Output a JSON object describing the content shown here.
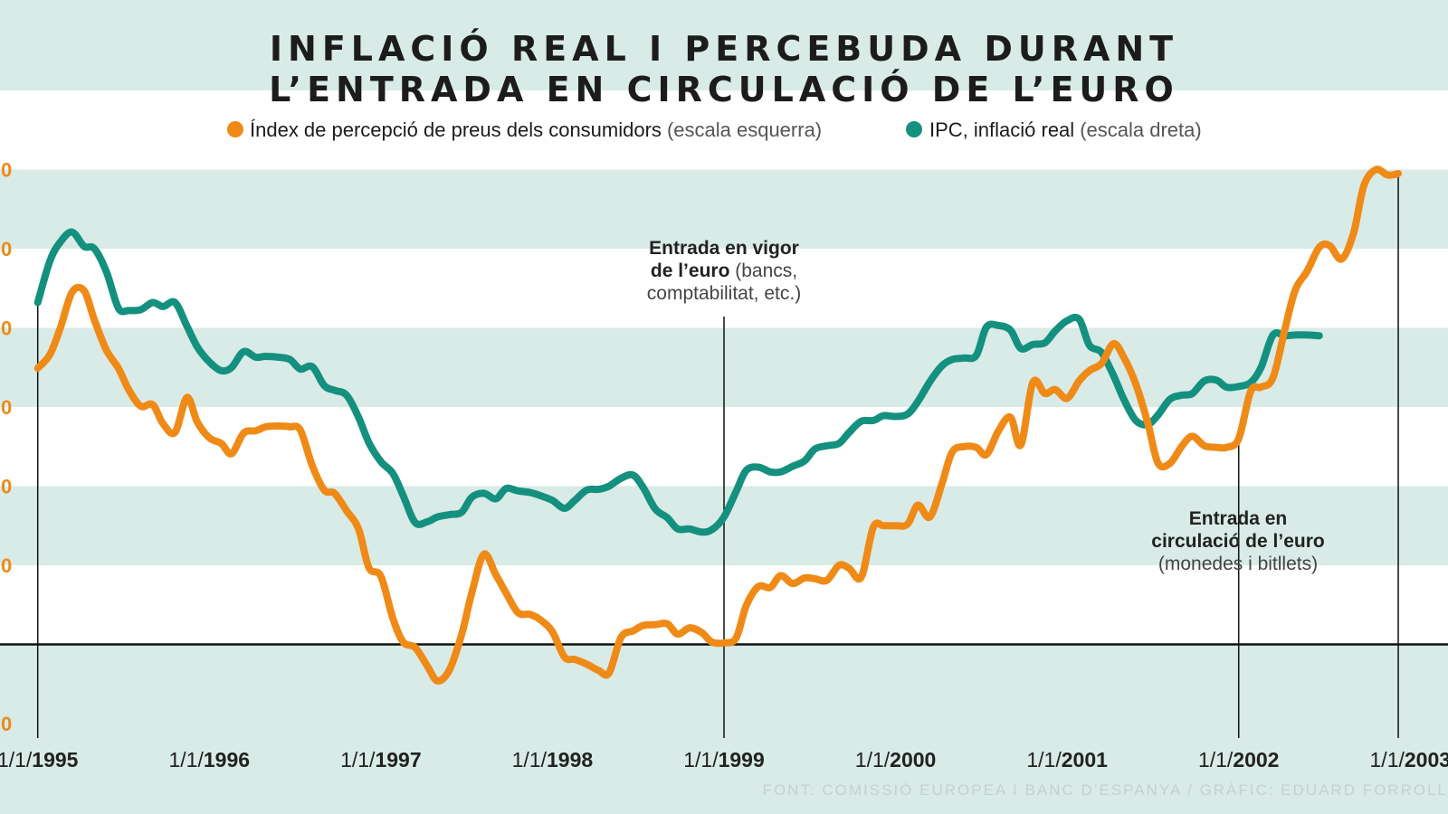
{
  "title_line1": "INFLACIÓ REAL I PERCEBUDA DURANT",
  "title_line2": "L’ENTRADA EN CIRCULACIÓ DE L’EURO",
  "legend": [
    {
      "label": "Índex de percepció de preus dels consumidors",
      "note": "(escala esquerra)",
      "color": "#ef8a17"
    },
    {
      "label": "IPC, inflació real",
      "note": "(escala dreta)",
      "color": "#14907e"
    }
  ],
  "annotations": {
    "euro_vigor": {
      "line1": "Entrada en vigor",
      "line2_bold": "de l’euro",
      "line2_rest": " (bancs,",
      "line3": "comptabilitat, etc.)"
    },
    "euro_circulacio": {
      "line1": "Entrada en",
      "line2": "circulació de l’euro",
      "line3": "(monedes i bitllets)"
    }
  },
  "source": "FONT: COMISSIÓ EUROPEA I BANC D’ESPANYA / GRÀFIC: EDUARD FORROLL",
  "colors": {
    "orange": "#ef8a17",
    "teal": "#14907e",
    "band_dark": "#d8ebe7",
    "band_light": "#ffffff"
  },
  "chart_data": {
    "type": "line",
    "x_ticks": [
      {
        "prefix": "1/1/",
        "year": "1995",
        "x": 1995
      },
      {
        "prefix": "1/1/",
        "year": "1996",
        "x": 1996
      },
      {
        "prefix": "1/1/",
        "year": "1997",
        "x": 1997
      },
      {
        "prefix": "1/1/",
        "year": "1998",
        "x": 1998
      },
      {
        "prefix": "1/1/",
        "year": "1999",
        "x": 1999
      },
      {
        "prefix": "1/1/",
        "year": "2000",
        "x": 2000
      },
      {
        "prefix": "1/1/",
        "year": "2001",
        "x": 2001
      },
      {
        "prefix": "1/1/",
        "year": "2002",
        "x": 2002
      },
      {
        "prefix": "1/1/",
        "year": "2003",
        "x": 2003
      }
    ],
    "y_left_ticks": [
      {
        "label": "0",
        "value": 60
      },
      {
        "label": "0",
        "value": 50
      },
      {
        "label": "0",
        "value": 40
      },
      {
        "label": "0",
        "value": 30
      },
      {
        "label": "0",
        "value": 20
      },
      {
        "label": "0",
        "value": 10
      },
      {
        "label": "0",
        "value": -10
      }
    ],
    "xlim": [
      1994.78,
      2003.22
    ],
    "ylim": [
      -10,
      70
    ],
    "zero_line": 0,
    "annotation_x": [
      1999,
      2002
    ],
    "series": [
      {
        "name": "Índex de percepció de preus dels consumidors",
        "color": "#ef8a17",
        "points": [
          [
            1995.0,
            34.9
          ],
          [
            1995.07,
            36.6
          ],
          [
            1995.13,
            39.9
          ],
          [
            1995.2,
            44.5
          ],
          [
            1995.27,
            44.7
          ],
          [
            1995.33,
            41.0
          ],
          [
            1995.4,
            37.2
          ],
          [
            1995.47,
            34.9
          ],
          [
            1995.53,
            32.2
          ],
          [
            1995.6,
            30.1
          ],
          [
            1995.67,
            30.3
          ],
          [
            1995.73,
            27.9
          ],
          [
            1995.8,
            26.8
          ],
          [
            1995.87,
            31.2
          ],
          [
            1995.93,
            28.1
          ],
          [
            1996.0,
            26.1
          ],
          [
            1996.07,
            25.4
          ],
          [
            1996.13,
            24.1
          ],
          [
            1996.2,
            26.7
          ],
          [
            1996.27,
            27.0
          ],
          [
            1996.33,
            27.5
          ],
          [
            1996.4,
            27.6
          ],
          [
            1996.47,
            27.5
          ],
          [
            1996.53,
            27.1
          ],
          [
            1996.6,
            22.6
          ],
          [
            1996.67,
            19.5
          ],
          [
            1996.73,
            19.1
          ],
          [
            1996.8,
            16.9
          ],
          [
            1996.87,
            14.6
          ],
          [
            1996.93,
            9.7
          ],
          [
            1997.0,
            8.6
          ],
          [
            1997.07,
            3.3
          ],
          [
            1997.13,
            0.3
          ],
          [
            1997.2,
            -0.4
          ],
          [
            1997.27,
            -2.7
          ],
          [
            1997.33,
            -4.6
          ],
          [
            1997.4,
            -3.2
          ],
          [
            1997.47,
            1.2
          ],
          [
            1997.53,
            6.5
          ],
          [
            1997.6,
            11.4
          ],
          [
            1997.67,
            8.8
          ],
          [
            1997.73,
            6.5
          ],
          [
            1997.8,
            4.0
          ],
          [
            1997.87,
            3.8
          ],
          [
            1997.93,
            3.1
          ],
          [
            1998.0,
            1.6
          ],
          [
            1998.07,
            -1.6
          ],
          [
            1998.13,
            -1.9
          ],
          [
            1998.2,
            -2.5
          ],
          [
            1998.27,
            -3.3
          ],
          [
            1998.33,
            -3.6
          ],
          [
            1998.4,
            0.9
          ],
          [
            1998.47,
            1.7
          ],
          [
            1998.53,
            2.4
          ],
          [
            1998.6,
            2.5
          ],
          [
            1998.67,
            2.6
          ],
          [
            1998.73,
            1.3
          ],
          [
            1998.8,
            2.1
          ],
          [
            1998.87,
            1.5
          ],
          [
            1998.93,
            0.3
          ],
          [
            1999.0,
            0.2
          ],
          [
            1999.07,
            0.8
          ],
          [
            1999.13,
            4.9
          ],
          [
            1999.2,
            7.3
          ],
          [
            1999.27,
            7.2
          ],
          [
            1999.33,
            8.7
          ],
          [
            1999.4,
            7.7
          ],
          [
            1999.47,
            8.4
          ],
          [
            1999.53,
            8.3
          ],
          [
            1999.6,
            8.1
          ],
          [
            1999.67,
            10.0
          ],
          [
            1999.73,
            9.6
          ],
          [
            1999.8,
            8.5
          ],
          [
            1999.87,
            14.8
          ],
          [
            1999.93,
            15.0
          ],
          [
            2000.0,
            15.0
          ],
          [
            2000.07,
            15.2
          ],
          [
            2000.13,
            17.6
          ],
          [
            2000.2,
            16.1
          ],
          [
            2000.27,
            20.3
          ],
          [
            2000.33,
            24.3
          ],
          [
            2000.4,
            25.0
          ],
          [
            2000.47,
            24.9
          ],
          [
            2000.53,
            24.0
          ],
          [
            2000.6,
            27.0
          ],
          [
            2000.67,
            28.7
          ],
          [
            2000.73,
            25.2
          ],
          [
            2000.8,
            33.1
          ],
          [
            2000.87,
            31.7
          ],
          [
            2000.93,
            32.2
          ],
          [
            2001.0,
            31.1
          ],
          [
            2001.07,
            33.3
          ],
          [
            2001.13,
            34.6
          ],
          [
            2001.2,
            35.5
          ],
          [
            2001.27,
            38.0
          ],
          [
            2001.33,
            36.3
          ],
          [
            2001.4,
            32.9
          ],
          [
            2001.47,
            28.0
          ],
          [
            2001.53,
            22.9
          ],
          [
            2001.6,
            22.9
          ],
          [
            2001.67,
            25.1
          ],
          [
            2001.73,
            26.3
          ],
          [
            2001.8,
            25.1
          ],
          [
            2001.87,
            24.9
          ],
          [
            2001.93,
            24.9
          ],
          [
            2002.0,
            26.0
          ],
          [
            2002.07,
            32.0
          ],
          [
            2002.13,
            32.5
          ],
          [
            2002.2,
            33.7
          ],
          [
            2002.27,
            39.9
          ],
          [
            2002.33,
            44.8
          ],
          [
            2002.4,
            47.2
          ],
          [
            2002.47,
            50.2
          ],
          [
            2002.53,
            50.4
          ],
          [
            2002.6,
            48.7
          ],
          [
            2002.67,
            52.0
          ],
          [
            2002.73,
            58.0
          ],
          [
            2002.8,
            60.0
          ],
          [
            2002.87,
            59.3
          ],
          [
            2002.93,
            59.5
          ]
        ]
      },
      {
        "name": "IPC, inflació real",
        "color": "#14907e",
        "points": [
          [
            1995.0,
            43.2
          ],
          [
            1995.07,
            48.4
          ],
          [
            1995.13,
            50.8
          ],
          [
            1995.2,
            52.1
          ],
          [
            1995.27,
            50.3
          ],
          [
            1995.33,
            50.0
          ],
          [
            1995.4,
            47.1
          ],
          [
            1995.47,
            42.5
          ],
          [
            1995.53,
            42.2
          ],
          [
            1995.6,
            42.3
          ],
          [
            1995.67,
            43.2
          ],
          [
            1995.73,
            42.7
          ],
          [
            1995.8,
            43.2
          ],
          [
            1995.87,
            40.2
          ],
          [
            1995.93,
            37.6
          ],
          [
            1996.0,
            35.7
          ],
          [
            1996.07,
            34.6
          ],
          [
            1996.13,
            35.0
          ],
          [
            1996.2,
            37.0
          ],
          [
            1996.27,
            36.3
          ],
          [
            1996.33,
            36.4
          ],
          [
            1996.4,
            36.3
          ],
          [
            1996.47,
            36.0
          ],
          [
            1996.53,
            34.8
          ],
          [
            1996.6,
            35.1
          ],
          [
            1996.67,
            32.7
          ],
          [
            1996.73,
            32.1
          ],
          [
            1996.8,
            31.5
          ],
          [
            1996.87,
            28.7
          ],
          [
            1996.93,
            25.5
          ],
          [
            1997.0,
            23.1
          ],
          [
            1997.07,
            21.6
          ],
          [
            1997.13,
            18.8
          ],
          [
            1997.2,
            15.4
          ],
          [
            1997.27,
            15.5
          ],
          [
            1997.33,
            16.1
          ],
          [
            1997.4,
            16.4
          ],
          [
            1997.47,
            16.7
          ],
          [
            1997.53,
            18.6
          ],
          [
            1997.6,
            19.1
          ],
          [
            1997.67,
            18.4
          ],
          [
            1997.73,
            19.7
          ],
          [
            1997.8,
            19.4
          ],
          [
            1997.87,
            19.2
          ],
          [
            1997.93,
            18.8
          ],
          [
            1998.0,
            18.2
          ],
          [
            1998.07,
            17.2
          ],
          [
            1998.13,
            18.2
          ],
          [
            1998.2,
            19.5
          ],
          [
            1998.27,
            19.6
          ],
          [
            1998.33,
            20.0
          ],
          [
            1998.4,
            21.0
          ],
          [
            1998.47,
            21.4
          ],
          [
            1998.53,
            19.8
          ],
          [
            1998.6,
            17.1
          ],
          [
            1998.67,
            16.0
          ],
          [
            1998.73,
            14.6
          ],
          [
            1998.8,
            14.6
          ],
          [
            1998.87,
            14.2
          ],
          [
            1998.93,
            14.5
          ],
          [
            1999.0,
            16.1
          ],
          [
            1999.07,
            19.3
          ],
          [
            1999.13,
            22.0
          ],
          [
            1999.2,
            22.4
          ],
          [
            1999.27,
            21.8
          ],
          [
            1999.33,
            21.8
          ],
          [
            1999.4,
            22.5
          ],
          [
            1999.47,
            23.2
          ],
          [
            1999.53,
            24.7
          ],
          [
            1999.6,
            25.1
          ],
          [
            1999.67,
            25.4
          ],
          [
            1999.73,
            26.8
          ],
          [
            1999.8,
            28.2
          ],
          [
            1999.87,
            28.3
          ],
          [
            1999.93,
            28.9
          ],
          [
            2000.0,
            28.8
          ],
          [
            2000.07,
            29.1
          ],
          [
            2000.13,
            30.7
          ],
          [
            2000.2,
            33.2
          ],
          [
            2000.27,
            35.2
          ],
          [
            2000.33,
            36.0
          ],
          [
            2000.4,
            36.2
          ],
          [
            2000.47,
            36.5
          ],
          [
            2000.53,
            40.1
          ],
          [
            2000.6,
            40.3
          ],
          [
            2000.67,
            39.7
          ],
          [
            2000.73,
            37.4
          ],
          [
            2000.8,
            37.9
          ],
          [
            2000.87,
            38.1
          ],
          [
            2000.93,
            39.6
          ],
          [
            2001.0,
            40.9
          ],
          [
            2001.07,
            41.1
          ],
          [
            2001.13,
            37.8
          ],
          [
            2001.2,
            36.9
          ],
          [
            2001.27,
            34.0
          ],
          [
            2001.33,
            31.0
          ],
          [
            2001.4,
            28.3
          ],
          [
            2001.47,
            27.8
          ],
          [
            2001.53,
            29.0
          ],
          [
            2001.6,
            31.0
          ],
          [
            2001.67,
            31.5
          ],
          [
            2001.73,
            31.7
          ],
          [
            2001.8,
            33.3
          ],
          [
            2001.87,
            33.4
          ],
          [
            2001.93,
            32.5
          ],
          [
            2002.0,
            32.6
          ],
          [
            2002.07,
            33.1
          ],
          [
            2002.13,
            35.0
          ],
          [
            2002.2,
            39.1
          ],
          [
            2002.27,
            39.0
          ],
          [
            2002.33,
            39.1
          ],
          [
            2002.4,
            39.1
          ],
          [
            2002.47,
            39.0
          ]
        ]
      }
    ]
  }
}
